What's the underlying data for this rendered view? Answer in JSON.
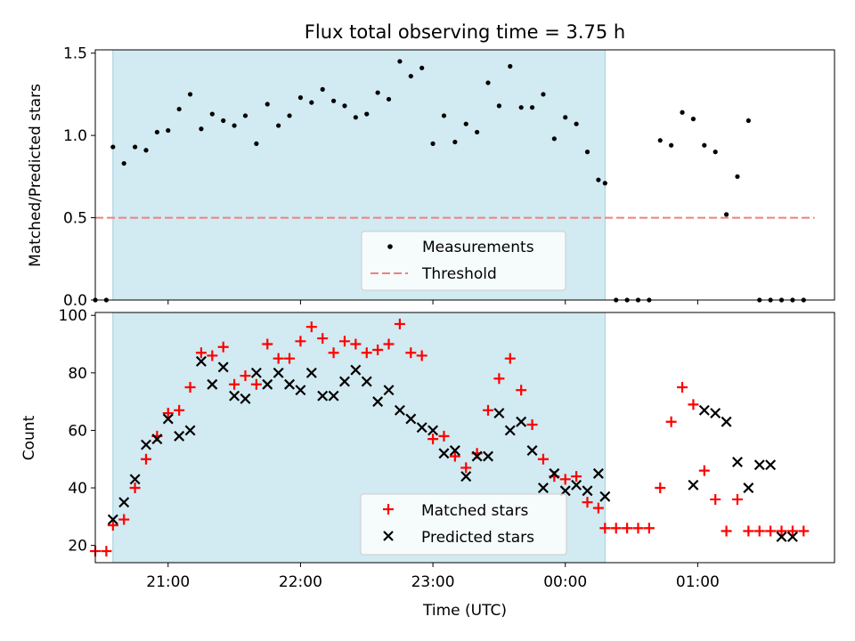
{
  "chart_data": [
    {
      "type": "scatter",
      "title": "Flux total observing time = 3.75 h",
      "ylabel": "Matched/Predicted stars",
      "xlim": [
        "20:27",
        "02:02"
      ],
      "ylim": [
        0,
        1.52
      ],
      "yticks": [
        "0.0",
        "0.5",
        "1.0",
        "1.5"
      ],
      "shaded_span": [
        "20:35",
        "00:18"
      ],
      "threshold": {
        "name": "Threshold",
        "value": 0.5,
        "x_range": [
          "20:27",
          "01:53"
        ],
        "color": "#f08080"
      },
      "series": [
        {
          "name": "Measurements",
          "color": "#000000",
          "x": [
            "20:27",
            "20:32",
            "20:35",
            "20:40",
            "20:45",
            "20:50",
            "20:55",
            "21:00",
            "21:05",
            "21:10",
            "21:15",
            "21:20",
            "21:25",
            "21:30",
            "21:35",
            "21:40",
            "21:45",
            "21:50",
            "21:55",
            "22:00",
            "22:05",
            "22:10",
            "22:15",
            "22:20",
            "22:25",
            "22:30",
            "22:35",
            "22:40",
            "22:45",
            "22:50",
            "22:55",
            "23:00",
            "23:05",
            "23:10",
            "23:15",
            "23:20",
            "23:25",
            "23:30",
            "23:35",
            "23:40",
            "23:45",
            "23:50",
            "23:55",
            "00:00",
            "00:05",
            "00:10",
            "00:15",
            "00:18",
            "00:23",
            "00:28",
            "00:33",
            "00:38",
            "00:43",
            "00:48",
            "00:53",
            "00:58",
            "01:03",
            "01:08",
            "01:13",
            "01:18",
            "01:23",
            "01:28",
            "01:33",
            "01:38",
            "01:43",
            "01:48"
          ],
          "y": [
            0,
            0,
            0.93,
            0.83,
            0.93,
            0.91,
            1.02,
            1.03,
            1.16,
            1.25,
            1.04,
            1.13,
            1.09,
            1.06,
            1.12,
            0.95,
            1.19,
            1.06,
            1.12,
            1.23,
            1.2,
            1.28,
            1.21,
            1.18,
            1.11,
            1.13,
            1.26,
            1.22,
            1.45,
            1.36,
            1.41,
            0.95,
            1.12,
            0.96,
            1.07,
            1.02,
            1.32,
            1.18,
            1.42,
            1.17,
            1.17,
            1.25,
            0.98,
            1.11,
            1.07,
            0.9,
            0.73,
            0.71,
            0,
            0,
            0,
            0,
            0.97,
            0.94,
            1.14,
            1.1,
            0.94,
            0.9,
            0.52,
            0.75,
            1.09,
            0,
            0,
            0,
            0,
            0
          ]
        }
      ],
      "legend": [
        "Measurements",
        "Threshold"
      ],
      "legend_position": "lower center"
    },
    {
      "type": "scatter",
      "xlabel": "Time (UTC)",
      "ylabel": "Count",
      "xlim": [
        "20:27",
        "02:02"
      ],
      "ylim": [
        14,
        101
      ],
      "xticks": [
        "21:00",
        "22:00",
        "23:00",
        "00:00",
        "01:00"
      ],
      "yticks": [
        "20",
        "40",
        "60",
        "80",
        "100"
      ],
      "shaded_span": [
        "20:35",
        "00:18"
      ],
      "series": [
        {
          "name": "Matched stars",
          "color": "#ff0000",
          "marker": "+",
          "x": [
            "20:27",
            "20:32",
            "20:35",
            "20:40",
            "20:45",
            "20:50",
            "20:55",
            "21:00",
            "21:05",
            "21:10",
            "21:15",
            "21:20",
            "21:25",
            "21:30",
            "21:35",
            "21:40",
            "21:45",
            "21:50",
            "21:55",
            "22:00",
            "22:05",
            "22:10",
            "22:15",
            "22:20",
            "22:25",
            "22:30",
            "22:35",
            "22:40",
            "22:45",
            "22:50",
            "22:55",
            "23:00",
            "23:05",
            "23:10",
            "23:15",
            "23:20",
            "23:25",
            "23:30",
            "23:35",
            "23:40",
            "23:45",
            "23:50",
            "23:55",
            "00:00",
            "00:05",
            "00:10",
            "00:15",
            "00:18",
            "00:23",
            "00:28",
            "00:33",
            "00:38",
            "00:43",
            "00:48",
            "00:53",
            "00:58",
            "01:03",
            "01:08",
            "01:13",
            "01:18",
            "01:23",
            "01:28",
            "01:33",
            "01:38",
            "01:43",
            "01:48"
          ],
          "y": [
            18,
            18,
            27,
            29,
            40,
            50,
            58,
            66,
            67,
            75,
            87,
            86,
            89,
            76,
            79,
            76,
            90,
            85,
            85,
            91,
            96,
            92,
            87,
            91,
            90,
            87,
            88,
            90,
            97,
            87,
            86,
            57,
            58,
            51,
            47,
            52,
            67,
            78,
            85,
            74,
            62,
            50,
            44,
            43,
            44,
            35,
            33,
            26,
            26,
            26,
            26,
            26,
            40,
            63,
            75,
            69,
            46,
            36,
            25,
            36,
            25,
            25,
            25,
            25,
            25,
            25
          ]
        },
        {
          "name": "Predicted stars",
          "color": "#000000",
          "marker": "x",
          "x": [
            "20:35",
            "20:40",
            "20:45",
            "20:50",
            "20:55",
            "21:00",
            "21:05",
            "21:10",
            "21:15",
            "21:20",
            "21:25",
            "21:30",
            "21:35",
            "21:40",
            "21:45",
            "21:50",
            "21:55",
            "22:00",
            "22:05",
            "22:10",
            "22:15",
            "22:20",
            "22:25",
            "22:30",
            "22:35",
            "22:40",
            "22:45",
            "22:50",
            "22:55",
            "23:00",
            "23:05",
            "23:10",
            "23:15",
            "23:20",
            "23:25",
            "23:30",
            "23:35",
            "23:40",
            "23:45",
            "23:50",
            "23:55",
            "00:00",
            "00:05",
            "00:10",
            "00:15",
            "00:18",
            "00:58",
            "01:03",
            "01:08",
            "01:13",
            "01:18",
            "01:23",
            "01:28",
            "01:33",
            "01:38",
            "01:43"
          ],
          "y": [
            29,
            35,
            43,
            55,
            57,
            64,
            58,
            60,
            84,
            76,
            82,
            72,
            71,
            80,
            76,
            80,
            76,
            74,
            80,
            72,
            72,
            77,
            81,
            77,
            70,
            74,
            67,
            64,
            61,
            60,
            52,
            53,
            44,
            51,
            51,
            66,
            60,
            63,
            53,
            40,
            45,
            39,
            41,
            39,
            45,
            37,
            41,
            67,
            66,
            63,
            49,
            40,
            48,
            48,
            23,
            23
          ]
        }
      ],
      "legend": [
        "Matched stars",
        "Predicted stars"
      ],
      "legend_position": "lower center"
    }
  ]
}
